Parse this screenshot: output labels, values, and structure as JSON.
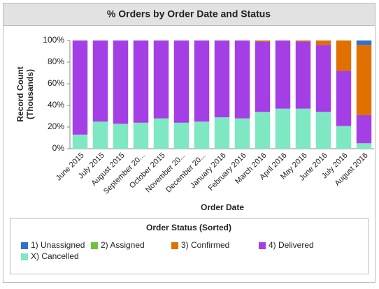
{
  "chart_data": {
    "type": "stacked_bar_percent",
    "title": "% Orders by Order Date and Status",
    "x_label": "Order Date",
    "y_label": [
      "Record Count",
      "(Thousands)"
    ],
    "legend_title": "Order Status (Sorted)",
    "categories": [
      "June 2015",
      "July 2015",
      "August 2015",
      "September 20...",
      "October 2015",
      "November 20...",
      "December 20...",
      "January 2016",
      "February 2016",
      "March 2016",
      "April 2016",
      "May 2016",
      "June 2016",
      "July 2016",
      "August 2016"
    ],
    "series": [
      {
        "name": "1) Unassigned",
        "color": "#2f6fd0",
        "values": [
          0,
          0,
          0,
          0,
          0,
          0,
          0,
          0,
          0,
          0,
          0,
          0,
          0,
          0,
          4
        ]
      },
      {
        "name": "2) Assigned",
        "color": "#6fc23a",
        "values": [
          0,
          0,
          0,
          0,
          0,
          0,
          0,
          0,
          0,
          0,
          0,
          0,
          0,
          0,
          0
        ]
      },
      {
        "name": "3) Confirmed",
        "color": "#e07000",
        "values": [
          0,
          0,
          0,
          0,
          0,
          0,
          0,
          0,
          0,
          1,
          0,
          1,
          4,
          28,
          65
        ]
      },
      {
        "name": "4) Delivered",
        "color": "#a43fe6",
        "values": [
          87,
          75,
          77,
          76,
          72,
          76,
          75,
          71,
          72,
          65,
          63,
          62,
          62,
          51,
          26
        ]
      },
      {
        "name": "X) Cancelled",
        "color": "#7ee8c2",
        "values": [
          13,
          25,
          23,
          24,
          28,
          24,
          25,
          29,
          28,
          34,
          37,
          37,
          34,
          21,
          5
        ]
      }
    ],
    "ylim": [
      0,
      100
    ],
    "yticks": [
      {
        "value": 0,
        "label": "0%"
      },
      {
        "value": 20,
        "label": "20%"
      },
      {
        "value": 40,
        "label": "40%"
      },
      {
        "value": 60,
        "label": "60%"
      },
      {
        "value": 80,
        "label": "80%"
      },
      {
        "value": 100,
        "label": "100%"
      }
    ]
  }
}
